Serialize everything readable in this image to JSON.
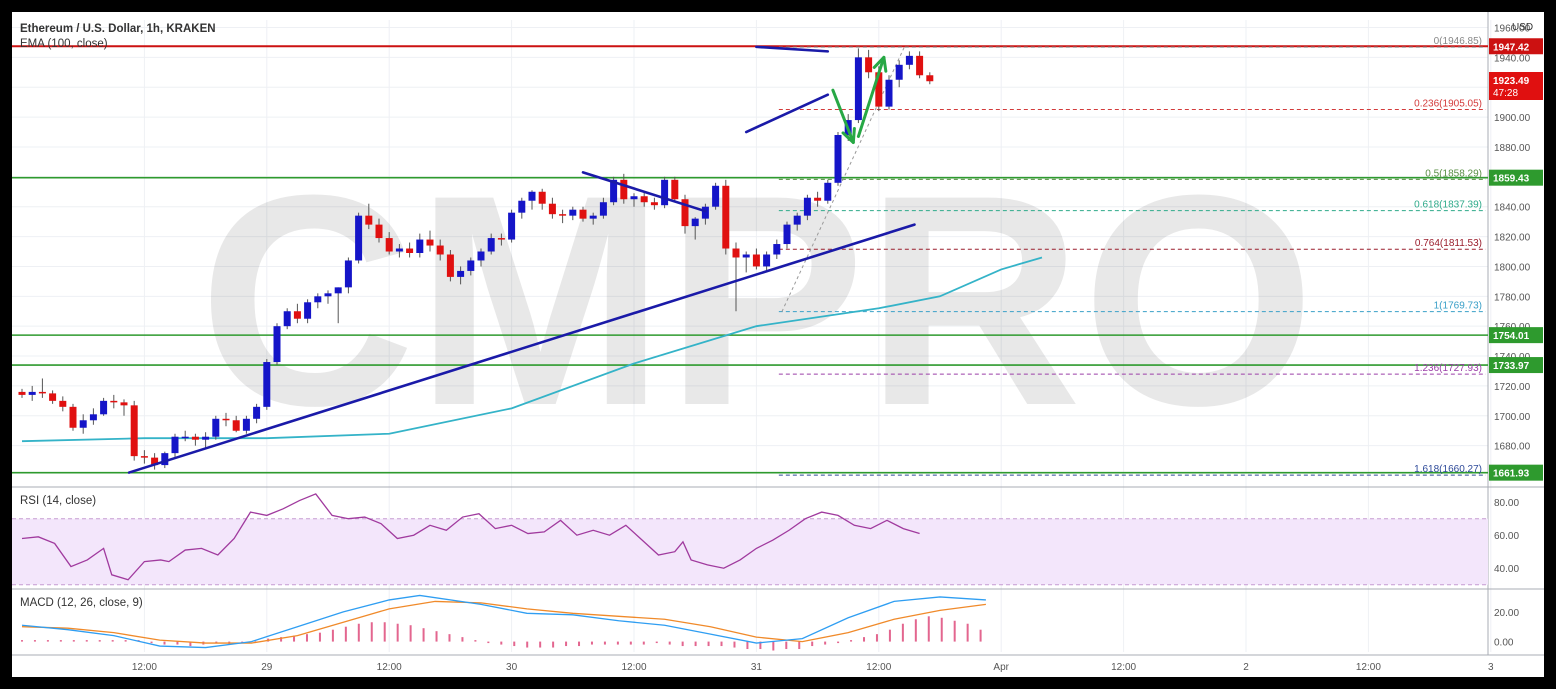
{
  "header": {
    "title": "Ethereum / U.S. Dollar, 1h, KRAKEN",
    "indicator": "EMA (100, close)",
    "currency": "USD",
    "watermark": "CMPRO"
  },
  "colors": {
    "bull": "#1515c8",
    "bear": "#e01010",
    "ema": "#34b3c8",
    "trendline": "#1a1aa8",
    "support": "#2e9a2e",
    "resistance": "#cc1111",
    "arrow": "#27a845",
    "rsi": "#a03a9e",
    "macd": "#2f9ef2",
    "signal": "#f08a2a",
    "hist_pos": "#d9336a"
  },
  "chart_data": {
    "type": "candlestick",
    "price_axis": {
      "ylim": [
        1653,
        1965
      ],
      "ticks": [
        "1960.00",
        "1940.00",
        "1920.00",
        "1900.00",
        "1880.00",
        "1860.00",
        "1840.00",
        "1820.00",
        "1800.00",
        "1780.00",
        "1760.00",
        "1740.00",
        "1720.00",
        "1700.00",
        "1680.00"
      ],
      "tick_values": [
        1960,
        1940,
        1920,
        1900,
        1880,
        1860,
        1840,
        1820,
        1800,
        1780,
        1760,
        1740,
        1720,
        1700,
        1680
      ]
    },
    "time_axis": {
      "labels": [
        "12:00",
        "29",
        "12:00",
        "30",
        "12:00",
        "31",
        "12:00",
        "Apr",
        "12:00",
        "2",
        "12:00",
        "3"
      ],
      "positions": [
        12,
        24,
        36,
        48,
        60,
        72,
        84,
        96,
        108,
        120,
        132,
        144
      ]
    },
    "candles": [
      [
        1716,
        1718,
        1712,
        1714
      ],
      [
        1714,
        1720,
        1710,
        1716
      ],
      [
        1716,
        1725,
        1712,
        1715
      ],
      [
        1715,
        1717,
        1708,
        1710
      ],
      [
        1710,
        1713,
        1703,
        1706
      ],
      [
        1706,
        1708,
        1690,
        1692
      ],
      [
        1692,
        1701,
        1688,
        1697
      ],
      [
        1697,
        1705,
        1694,
        1701
      ],
      [
        1701,
        1712,
        1700,
        1710
      ],
      [
        1710,
        1714,
        1705,
        1709
      ],
      [
        1709,
        1711,
        1700,
        1707
      ],
      [
        1707,
        1710,
        1670,
        1673
      ],
      [
        1673,
        1677,
        1668,
        1672
      ],
      [
        1672,
        1675,
        1664,
        1667
      ],
      [
        1667,
        1676,
        1665,
        1675
      ],
      [
        1675,
        1688,
        1672,
        1686
      ],
      [
        1686,
        1690,
        1683,
        1686
      ],
      [
        1686,
        1688,
        1680,
        1684
      ],
      [
        1684,
        1689,
        1678,
        1686
      ],
      [
        1686,
        1700,
        1684,
        1698
      ],
      [
        1698,
        1702,
        1693,
        1697
      ],
      [
        1697,
        1700,
        1689,
        1690
      ],
      [
        1690,
        1700,
        1688,
        1698
      ],
      [
        1698,
        1708,
        1695,
        1706
      ],
      [
        1706,
        1738,
        1704,
        1736
      ],
      [
        1736,
        1762,
        1734,
        1760
      ],
      [
        1760,
        1772,
        1758,
        1770
      ],
      [
        1770,
        1775,
        1762,
        1765
      ],
      [
        1765,
        1778,
        1762,
        1776
      ],
      [
        1776,
        1782,
        1772,
        1780
      ],
      [
        1780,
        1784,
        1775,
        1782
      ],
      [
        1782,
        1786,
        1762,
        1786
      ],
      [
        1786,
        1806,
        1782,
        1804
      ],
      [
        1804,
        1836,
        1802,
        1834
      ],
      [
        1834,
        1842,
        1825,
        1828
      ],
      [
        1828,
        1832,
        1816,
        1819
      ],
      [
        1819,
        1823,
        1808,
        1810
      ],
      [
        1810,
        1815,
        1806,
        1812
      ],
      [
        1812,
        1816,
        1806,
        1809
      ],
      [
        1809,
        1822,
        1806,
        1818
      ],
      [
        1818,
        1824,
        1810,
        1814
      ],
      [
        1814,
        1818,
        1804,
        1808
      ],
      [
        1808,
        1811,
        1790,
        1793
      ],
      [
        1793,
        1800,
        1788,
        1797
      ],
      [
        1797,
        1806,
        1794,
        1804
      ],
      [
        1804,
        1812,
        1800,
        1810
      ],
      [
        1810,
        1822,
        1808,
        1819
      ],
      [
        1819,
        1822,
        1814,
        1818
      ],
      [
        1818,
        1838,
        1816,
        1836
      ],
      [
        1836,
        1846,
        1832,
        1844
      ],
      [
        1844,
        1851,
        1838,
        1850
      ],
      [
        1850,
        1852,
        1838,
        1842
      ],
      [
        1842,
        1846,
        1832,
        1835
      ],
      [
        1835,
        1838,
        1829,
        1834
      ],
      [
        1834,
        1840,
        1831,
        1838
      ],
      [
        1838,
        1840,
        1830,
        1832
      ],
      [
        1832,
        1836,
        1828,
        1834
      ],
      [
        1834,
        1846,
        1832,
        1843
      ],
      [
        1843,
        1860,
        1841,
        1858
      ],
      [
        1858,
        1862,
        1842,
        1845
      ],
      [
        1845,
        1849,
        1840,
        1847
      ],
      [
        1847,
        1850,
        1840,
        1843
      ],
      [
        1843,
        1846,
        1838,
        1841
      ],
      [
        1841,
        1860,
        1839,
        1858
      ],
      [
        1858,
        1860,
        1843,
        1845
      ],
      [
        1845,
        1848,
        1822,
        1827
      ],
      [
        1827,
        1833,
        1818,
        1832
      ],
      [
        1832,
        1842,
        1828,
        1840
      ],
      [
        1840,
        1856,
        1838,
        1854
      ],
      [
        1854,
        1858,
        1808,
        1812
      ],
      [
        1812,
        1816,
        1770,
        1806
      ],
      [
        1806,
        1810,
        1796,
        1808
      ],
      [
        1808,
        1812,
        1798,
        1800
      ],
      [
        1800,
        1810,
        1797,
        1808
      ],
      [
        1808,
        1818,
        1805,
        1815
      ],
      [
        1815,
        1830,
        1812,
        1828
      ],
      [
        1828,
        1836,
        1824,
        1834
      ],
      [
        1834,
        1848,
        1831,
        1846
      ],
      [
        1846,
        1850,
        1840,
        1844
      ],
      [
        1844,
        1858,
        1842,
        1856
      ],
      [
        1856,
        1890,
        1854,
        1888
      ],
      [
        1888,
        1902,
        1884,
        1898
      ],
      [
        1898,
        1946,
        1896,
        1940
      ],
      [
        1940,
        1945,
        1926,
        1930
      ],
      [
        1930,
        1934,
        1904,
        1907
      ],
      [
        1907,
        1928,
        1905,
        1925
      ],
      [
        1925,
        1938,
        1920,
        1935
      ],
      [
        1935,
        1944,
        1932,
        1941
      ],
      [
        1941,
        1944,
        1926,
        1928
      ],
      [
        1928,
        1930,
        1922,
        1924
      ]
    ],
    "ema_100": [
      [
        0,
        1683
      ],
      [
        12,
        1685
      ],
      [
        24,
        1685
      ],
      [
        36,
        1688
      ],
      [
        48,
        1705
      ],
      [
        60,
        1735
      ],
      [
        72,
        1760
      ],
      [
        84,
        1772
      ],
      [
        90,
        1780
      ],
      [
        96,
        1798
      ],
      [
        100,
        1806
      ]
    ],
    "fib_levels": [
      {
        "ratio": "0",
        "value": 1946.85,
        "label": "0(1946.85)",
        "color": "#888888"
      },
      {
        "ratio": "0.236",
        "value": 1905.05,
        "label": "0.236(1905.05)",
        "color": "#d33b3b"
      },
      {
        "ratio": "0.5",
        "value": 1858.29,
        "label": "0.5(1858.29)",
        "color": "#5a8f45"
      },
      {
        "ratio": "0.618",
        "value": 1837.39,
        "label": "0.618(1837.39)",
        "color": "#2eaa8a"
      },
      {
        "ratio": "0.764",
        "value": 1811.53,
        "label": "0.764(1811.53)",
        "color": "#9a1d2c"
      },
      {
        "ratio": "1",
        "value": 1769.73,
        "label": "1(1769.73)",
        "color": "#3aa0c8"
      },
      {
        "ratio": "1.236",
        "value": 1727.93,
        "label": "1.236(1727.93)",
        "color": "#9b3fa8"
      },
      {
        "ratio": "1.618",
        "value": 1660.27,
        "label": "1.618(1660.27)",
        "color": "#2e4a99"
      }
    ],
    "horizontal_lines": [
      {
        "value": 1947.42,
        "label": "1947.42",
        "kind": "resistance"
      },
      {
        "value": 1859.43,
        "label": "1859.43",
        "kind": "support"
      },
      {
        "value": 1754.01,
        "label": "1754.01",
        "kind": "support"
      },
      {
        "value": 1733.97,
        "label": "1733.97",
        "kind": "support"
      },
      {
        "value": 1661.93,
        "label": "1661.93",
        "kind": "support"
      }
    ],
    "current_price": {
      "value": 1923.49,
      "label": "1923.49",
      "countdown": "47:28"
    },
    "trendlines": [
      {
        "from": [
          10.5,
          1662
        ],
        "to": [
          87.5,
          1828
        ]
      },
      {
        "from": [
          55,
          1863
        ],
        "to": [
          67,
          1837
        ]
      },
      {
        "from": [
          71,
          1890
        ],
        "to": [
          79,
          1915
        ]
      },
      {
        "from": [
          72,
          1947
        ],
        "to": [
          79,
          1944
        ]
      }
    ],
    "arrows": [
      {
        "from": [
          79.5,
          1918
        ],
        "to": [
          81.5,
          1883
        ]
      },
      {
        "from": [
          82,
          1887
        ],
        "to": [
          84.5,
          1940
        ]
      }
    ],
    "rsi": {
      "title": "RSI (14, close)",
      "ylim": [
        28,
        88
      ],
      "band": [
        30,
        70
      ],
      "ticks": [
        "80.00",
        "60.00",
        "40.00"
      ],
      "tick_values": [
        80,
        60,
        40
      ],
      "points": [
        [
          0,
          58
        ],
        [
          2,
          59
        ],
        [
          4,
          55
        ],
        [
          6,
          41
        ],
        [
          8,
          45
        ],
        [
          10,
          52
        ],
        [
          11,
          36
        ],
        [
          13,
          33
        ],
        [
          15,
          44
        ],
        [
          17,
          45
        ],
        [
          18,
          44
        ],
        [
          20,
          51
        ],
        [
          22,
          52
        ],
        [
          24,
          48
        ],
        [
          26,
          58
        ],
        [
          28,
          74
        ],
        [
          30,
          72
        ],
        [
          32,
          76
        ],
        [
          34,
          81
        ],
        [
          36,
          85
        ],
        [
          38,
          72
        ],
        [
          40,
          70
        ],
        [
          42,
          71
        ],
        [
          44,
          67
        ],
        [
          46,
          58
        ],
        [
          48,
          60
        ],
        [
          50,
          66
        ],
        [
          52,
          63
        ],
        [
          54,
          71
        ],
        [
          56,
          73
        ],
        [
          58,
          64
        ],
        [
          60,
          66
        ],
        [
          62,
          61
        ],
        [
          64,
          62
        ],
        [
          66,
          69
        ],
        [
          68,
          60
        ],
        [
          70,
          63
        ],
        [
          72,
          60
        ],
        [
          74,
          66
        ],
        [
          76,
          57
        ],
        [
          78,
          48
        ],
        [
          80,
          50
        ],
        [
          81,
          56
        ],
        [
          82,
          45
        ],
        [
          84,
          42
        ],
        [
          86,
          40
        ],
        [
          88,
          45
        ],
        [
          90,
          52
        ],
        [
          92,
          57
        ],
        [
          94,
          63
        ],
        [
          96,
          70
        ],
        [
          98,
          74
        ],
        [
          100,
          72
        ],
        [
          102,
          66
        ],
        [
          104,
          64
        ],
        [
          106,
          69
        ],
        [
          108,
          64
        ],
        [
          110,
          61
        ]
      ]
    },
    "macd": {
      "title": "MACD (12, 26, close, 9)",
      "ylim": [
        -7,
        34
      ],
      "ticks": [
        "20.00",
        "0.00"
      ],
      "tick_values": [
        20,
        0
      ],
      "macd_points": [
        [
          0,
          11
        ],
        [
          6,
          8
        ],
        [
          12,
          4
        ],
        [
          18,
          -3
        ],
        [
          24,
          -4
        ],
        [
          30,
          0
        ],
        [
          36,
          10
        ],
        [
          42,
          20
        ],
        [
          48,
          28
        ],
        [
          52,
          31
        ],
        [
          60,
          25
        ],
        [
          66,
          19
        ],
        [
          72,
          18
        ],
        [
          78,
          14
        ],
        [
          84,
          11
        ],
        [
          90,
          5
        ],
        [
          96,
          -1
        ],
        [
          102,
          2
        ],
        [
          108,
          16
        ],
        [
          114,
          27
        ],
        [
          120,
          30
        ],
        [
          126,
          28
        ]
      ],
      "signal_points": [
        [
          0,
          10
        ],
        [
          6,
          9
        ],
        [
          12,
          6
        ],
        [
          18,
          1
        ],
        [
          24,
          -1
        ],
        [
          30,
          -1
        ],
        [
          36,
          4
        ],
        [
          42,
          13
        ],
        [
          48,
          22
        ],
        [
          54,
          27
        ],
        [
          60,
          26
        ],
        [
          66,
          22
        ],
        [
          72,
          19
        ],
        [
          78,
          17
        ],
        [
          84,
          15
        ],
        [
          90,
          10
        ],
        [
          96,
          3
        ],
        [
          102,
          0
        ],
        [
          108,
          6
        ],
        [
          114,
          15
        ],
        [
          120,
          21
        ],
        [
          126,
          25
        ]
      ],
      "histogram": [
        1,
        1,
        1,
        1,
        1,
        1,
        1,
        1,
        1,
        1,
        -1,
        -2,
        -2,
        -3,
        -2,
        -1,
        -2,
        -1,
        1,
        2,
        3,
        4,
        5,
        6,
        8,
        10,
        12,
        13,
        13,
        12,
        11,
        9,
        7,
        5,
        3,
        1,
        -1,
        -2,
        -3,
        -4,
        -4,
        -4,
        -3,
        -3,
        -2,
        -2,
        -2,
        -2,
        -2,
        -1,
        -2,
        -3,
        -3,
        -3,
        -3,
        -4,
        -5,
        -5,
        -6,
        -5,
        -5,
        -3,
        -2,
        -1,
        1,
        3,
        5,
        8,
        12,
        15,
        17,
        16,
        14,
        12,
        8
      ]
    },
    "xlabel": "",
    "ylabel": ""
  }
}
